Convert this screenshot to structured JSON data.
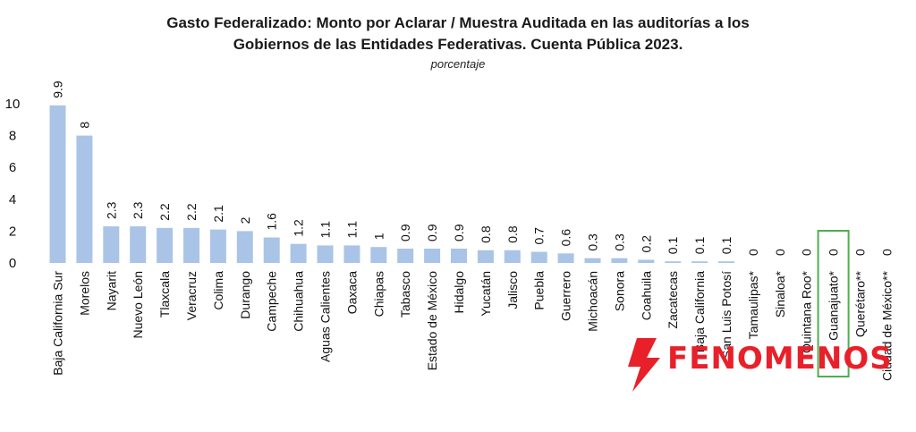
{
  "chart_data": {
    "type": "bar",
    "title_line1": "Gasto Federalizado: Monto por Aclarar / Muestra Auditada en las auditorías a los",
    "title_line2": "Gobiernos de las Entidades Federativas. Cuenta Pública 2023.",
    "subtitle": "porcentaje",
    "ylim": [
      0,
      10
    ],
    "yticks": [
      0,
      2,
      4,
      6,
      8,
      10
    ],
    "grid": false,
    "bar_color": "#a9c4e6",
    "highlight_color": "#4caf50",
    "highlight_category": "Guanajuato*",
    "categories": [
      "Baja California Sur",
      "Morelos",
      "Nayarit",
      "Nuevo León",
      "Tlaxcala",
      "Veracruz",
      "Colima",
      "Durango",
      "Campeche",
      "Chihuahua",
      "Aguas Calientes",
      "Oaxaca",
      "Chiapas",
      "Tabasco",
      "Estado de México",
      "Hidalgo",
      "Yucatán",
      "Jalisco",
      "Puebla",
      "Guerrero",
      "Michoacán",
      "Sonora",
      "Coahuila",
      "Zacatecas",
      "Baja California",
      "San Luis Potosí",
      "Tamaulipas*",
      "Sinaloa*",
      "Quintana Roo*",
      "Guanajuato*",
      "Querétaro**",
      "Ciudad de México**"
    ],
    "values": [
      9.9,
      8,
      2.3,
      2.3,
      2.2,
      2.2,
      2.1,
      2,
      1.6,
      1.2,
      1.1,
      1.1,
      1,
      0.9,
      0.9,
      0.9,
      0.8,
      0.8,
      0.7,
      0.6,
      0.3,
      0.3,
      0.2,
      0.1,
      0.1,
      0.1,
      0,
      0,
      0,
      0,
      0,
      0
    ],
    "value_labels": [
      "9.9",
      "8",
      "2.3",
      "2.3",
      "2.2",
      "2.2",
      "2.1",
      "2",
      "1.6",
      "1.2",
      "1.1",
      "1.1",
      "1",
      "0.9",
      "0.9",
      "0.9",
      "0.8",
      "0.8",
      "0.7",
      "0.6",
      "0.3",
      "0.3",
      "0.2",
      "0.1",
      "0.1",
      "0.1",
      "0",
      "0",
      "0",
      "0",
      "0",
      "0"
    ]
  },
  "watermark": {
    "text": "FENOMENOS",
    "color": "#e8202a",
    "icon": "lightning-bolt-icon"
  }
}
